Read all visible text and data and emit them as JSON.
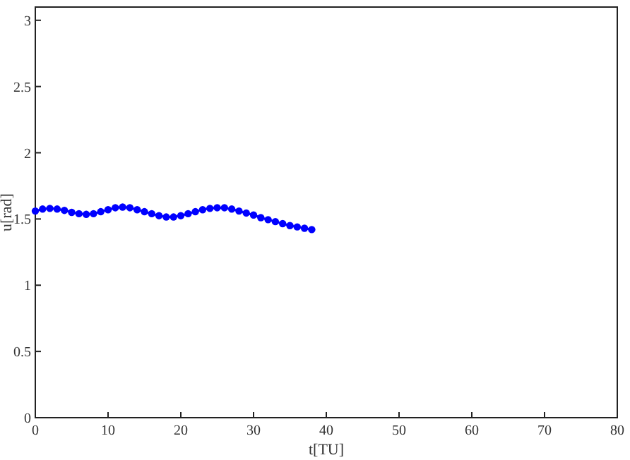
{
  "chart_data": {
    "type": "line",
    "xlabel": "t[TU]",
    "ylabel": "u[rad]",
    "xlim": [
      0,
      80
    ],
    "ylim": [
      0,
      3.1
    ],
    "xticks": [
      0,
      10,
      20,
      30,
      40,
      50,
      60,
      70,
      80
    ],
    "yticks": [
      0,
      0.5,
      1,
      1.5,
      2,
      2.5,
      3
    ],
    "grid": false,
    "marker": "circle",
    "line_style": "solid",
    "series": [
      {
        "color": "#0000ff",
        "x": [
          0,
          1,
          2,
          3,
          4,
          5,
          6,
          7,
          8,
          9,
          10,
          11,
          12,
          13,
          14,
          15,
          16,
          17,
          18,
          19,
          20,
          21,
          22,
          23,
          24,
          25,
          26,
          27,
          28,
          29,
          30,
          31,
          32,
          33,
          34,
          35,
          36,
          37,
          38
        ],
        "values": [
          1.56,
          1.575,
          1.58,
          1.575,
          1.565,
          1.55,
          1.54,
          1.535,
          1.54,
          1.555,
          1.57,
          1.585,
          1.59,
          1.585,
          1.57,
          1.555,
          1.54,
          1.525,
          1.515,
          1.515,
          1.525,
          1.54,
          1.555,
          1.57,
          1.58,
          1.585,
          1.585,
          1.575,
          1.56,
          1.545,
          1.53,
          1.51,
          1.495,
          1.48,
          1.465,
          1.45,
          1.44,
          1.43,
          1.42
        ]
      }
    ]
  }
}
